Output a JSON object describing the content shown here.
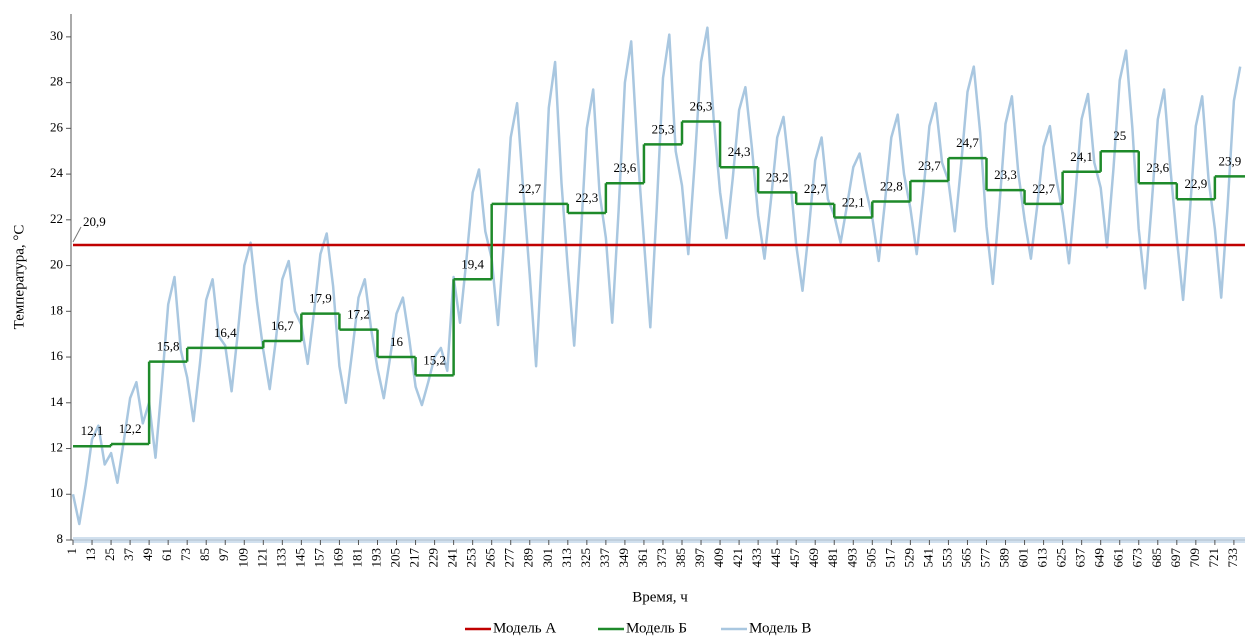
{
  "chart_data": {
    "type": "line",
    "xlabel": "Время, ч",
    "ylabel": "Температура, °С",
    "xlim": [
      1,
      740
    ],
    "ylim": [
      8,
      31
    ],
    "xticks": [
      1,
      13,
      25,
      37,
      49,
      61,
      73,
      85,
      97,
      109,
      121,
      133,
      145,
      157,
      169,
      181,
      193,
      205,
      217,
      229,
      241,
      253,
      265,
      277,
      289,
      301,
      313,
      325,
      337,
      349,
      361,
      373,
      385,
      397,
      409,
      421,
      433,
      445,
      457,
      469,
      481,
      493,
      505,
      517,
      529,
      541,
      553,
      565,
      577,
      589,
      601,
      613,
      625,
      637,
      649,
      661,
      673,
      685,
      697,
      709,
      721,
      733
    ],
    "yticks": [
      8,
      10,
      12,
      14,
      16,
      18,
      20,
      22,
      24,
      26,
      28,
      30
    ],
    "legend": "bottom",
    "series": [
      {
        "name": "Модель В",
        "color": "#a9c7e0",
        "x": [
          1,
          5,
          9,
          13,
          17,
          21,
          25,
          29,
          33,
          37,
          41,
          45,
          49,
          53,
          57,
          61,
          65,
          69,
          73,
          77,
          81,
          85,
          89,
          93,
          97,
          101,
          105,
          109,
          113,
          117,
          121,
          125,
          129,
          133,
          137,
          141,
          145,
          149,
          153,
          157,
          161,
          165,
          169,
          173,
          177,
          181,
          185,
          189,
          193,
          197,
          201,
          205,
          209,
          213,
          217,
          221,
          225,
          229,
          233,
          237,
          241,
          245,
          249,
          253,
          257,
          261,
          265,
          269,
          273,
          277,
          281,
          285,
          289,
          293,
          297,
          301,
          305,
          309,
          313,
          317,
          321,
          325,
          329,
          333,
          337,
          341,
          345,
          349,
          353,
          357,
          361,
          365,
          369,
          373,
          377,
          381,
          385,
          389,
          393,
          397,
          401,
          405,
          409,
          413,
          417,
          421,
          425,
          429,
          433,
          437,
          441,
          445,
          449,
          453,
          457,
          461,
          465,
          469,
          473,
          477,
          481,
          485,
          489,
          493,
          497,
          501,
          505,
          509,
          513,
          517,
          521,
          525,
          529,
          533,
          537,
          541,
          545,
          549,
          553,
          557,
          561,
          565,
          569,
          573,
          577,
          581,
          585,
          589,
          593,
          597,
          601,
          605,
          609,
          613,
          617,
          621,
          625,
          629,
          633,
          637,
          641,
          645,
          649,
          653,
          657,
          661,
          665,
          669,
          673,
          677,
          681,
          685,
          689,
          693,
          697,
          701,
          705,
          709,
          713,
          717,
          721,
          725,
          729,
          733,
          737
        ],
        "values": [
          10.0,
          8.7,
          10.4,
          12.4,
          13.0,
          11.3,
          11.8,
          10.5,
          12.3,
          14.2,
          14.9,
          13.1,
          14.0,
          11.6,
          14.8,
          18.3,
          19.5,
          16.3,
          15.1,
          13.2,
          15.7,
          18.5,
          19.4,
          16.9,
          16.5,
          14.5,
          17.1,
          20.0,
          21.0,
          18.4,
          16.3,
          14.6,
          16.8,
          19.4,
          20.2,
          18.0,
          17.4,
          15.7,
          18.0,
          20.5,
          21.4,
          19.1,
          15.6,
          14.0,
          16.2,
          18.6,
          19.4,
          17.2,
          15.5,
          14.2,
          16.0,
          17.9,
          18.6,
          16.8,
          14.7,
          13.9,
          14.9,
          16.0,
          16.4,
          15.4,
          19.5,
          17.5,
          20.2,
          23.2,
          24.2,
          21.5,
          20.3,
          17.4,
          21.3,
          25.6,
          27.1,
          23.2,
          19.6,
          15.6,
          20.9,
          26.9,
          28.9,
          23.6,
          19.9,
          16.5,
          21.0,
          26.0,
          27.7,
          23.2,
          21.2,
          17.5,
          22.4,
          28.0,
          29.8,
          24.9,
          21.1,
          17.3,
          22.4,
          28.2,
          30.1,
          25.0,
          23.5,
          20.5,
          24.5,
          28.9,
          30.4,
          26.4,
          23.2,
          21.2,
          23.8,
          26.8,
          27.8,
          25.2,
          22.2,
          20.3,
          22.8,
          25.6,
          26.5,
          24.0,
          20.9,
          18.9,
          21.6,
          24.6,
          25.6,
          22.9,
          22.2,
          21.0,
          22.6,
          24.3,
          24.9,
          23.3,
          22.1,
          20.2,
          22.8,
          25.6,
          26.6,
          24.0,
          22.5,
          20.5,
          23.1,
          26.1,
          27.1,
          24.5,
          23.7,
          21.5,
          24.4,
          27.6,
          28.7,
          25.8,
          21.7,
          19.2,
          22.5,
          26.2,
          27.4,
          24.1,
          22.0,
          20.3,
          22.6,
          25.2,
          26.1,
          23.8,
          22.3,
          20.1,
          23.1,
          26.4,
          27.5,
          24.5,
          23.4,
          20.8,
          24.2,
          28.1,
          29.4,
          26.0,
          21.6,
          19.0,
          22.5,
          26.4,
          27.7,
          24.2,
          21.2,
          18.5,
          22.1,
          26.1,
          27.4,
          23.8,
          21.6,
          18.6,
          22.6,
          27.2,
          28.7
        ]
      },
      {
        "name": "Модель А",
        "color": "#c00000",
        "drawstyle": "steps-post",
        "x": [
          1
        ],
        "values": [
          20.9
        ],
        "value_labels": [
          "20,9"
        ]
      },
      {
        "name": "Модель Б",
        "color": "#1e8a2a",
        "drawstyle": "steps-post",
        "x": [
          1,
          25,
          49,
          73,
          121,
          145,
          169,
          193,
          217,
          241,
          265,
          313,
          337,
          361,
          385,
          409,
          433,
          457,
          481,
          505,
          529,
          553,
          577,
          601,
          625,
          649,
          673,
          697,
          721
        ],
        "values": [
          12.1,
          12.2,
          15.8,
          16.4,
          16.7,
          17.9,
          17.2,
          16,
          15.2,
          19.4,
          22.7,
          22.3,
          23.6,
          25.3,
          26.3,
          24.3,
          23.2,
          22.7,
          22.1,
          22.8,
          23.7,
          24.7,
          23.3,
          22.7,
          24.1,
          25,
          23.6,
          22.9,
          23.9
        ],
        "value_labels": [
          "12,1",
          "12,2",
          "15,8",
          "16,4",
          "16,7",
          "17,9",
          "17,2",
          "16",
          "15,2",
          "19,4",
          "22,7",
          "22,3",
          "23,6",
          "25,3",
          "26,3",
          "24,3",
          "23,2",
          "22,7",
          "22,1",
          "22,8",
          "23,7",
          "24,7",
          "23,3",
          "22,7",
          "24,1",
          "25",
          "23,6",
          "22,9",
          "23,9"
        ]
      }
    ]
  }
}
